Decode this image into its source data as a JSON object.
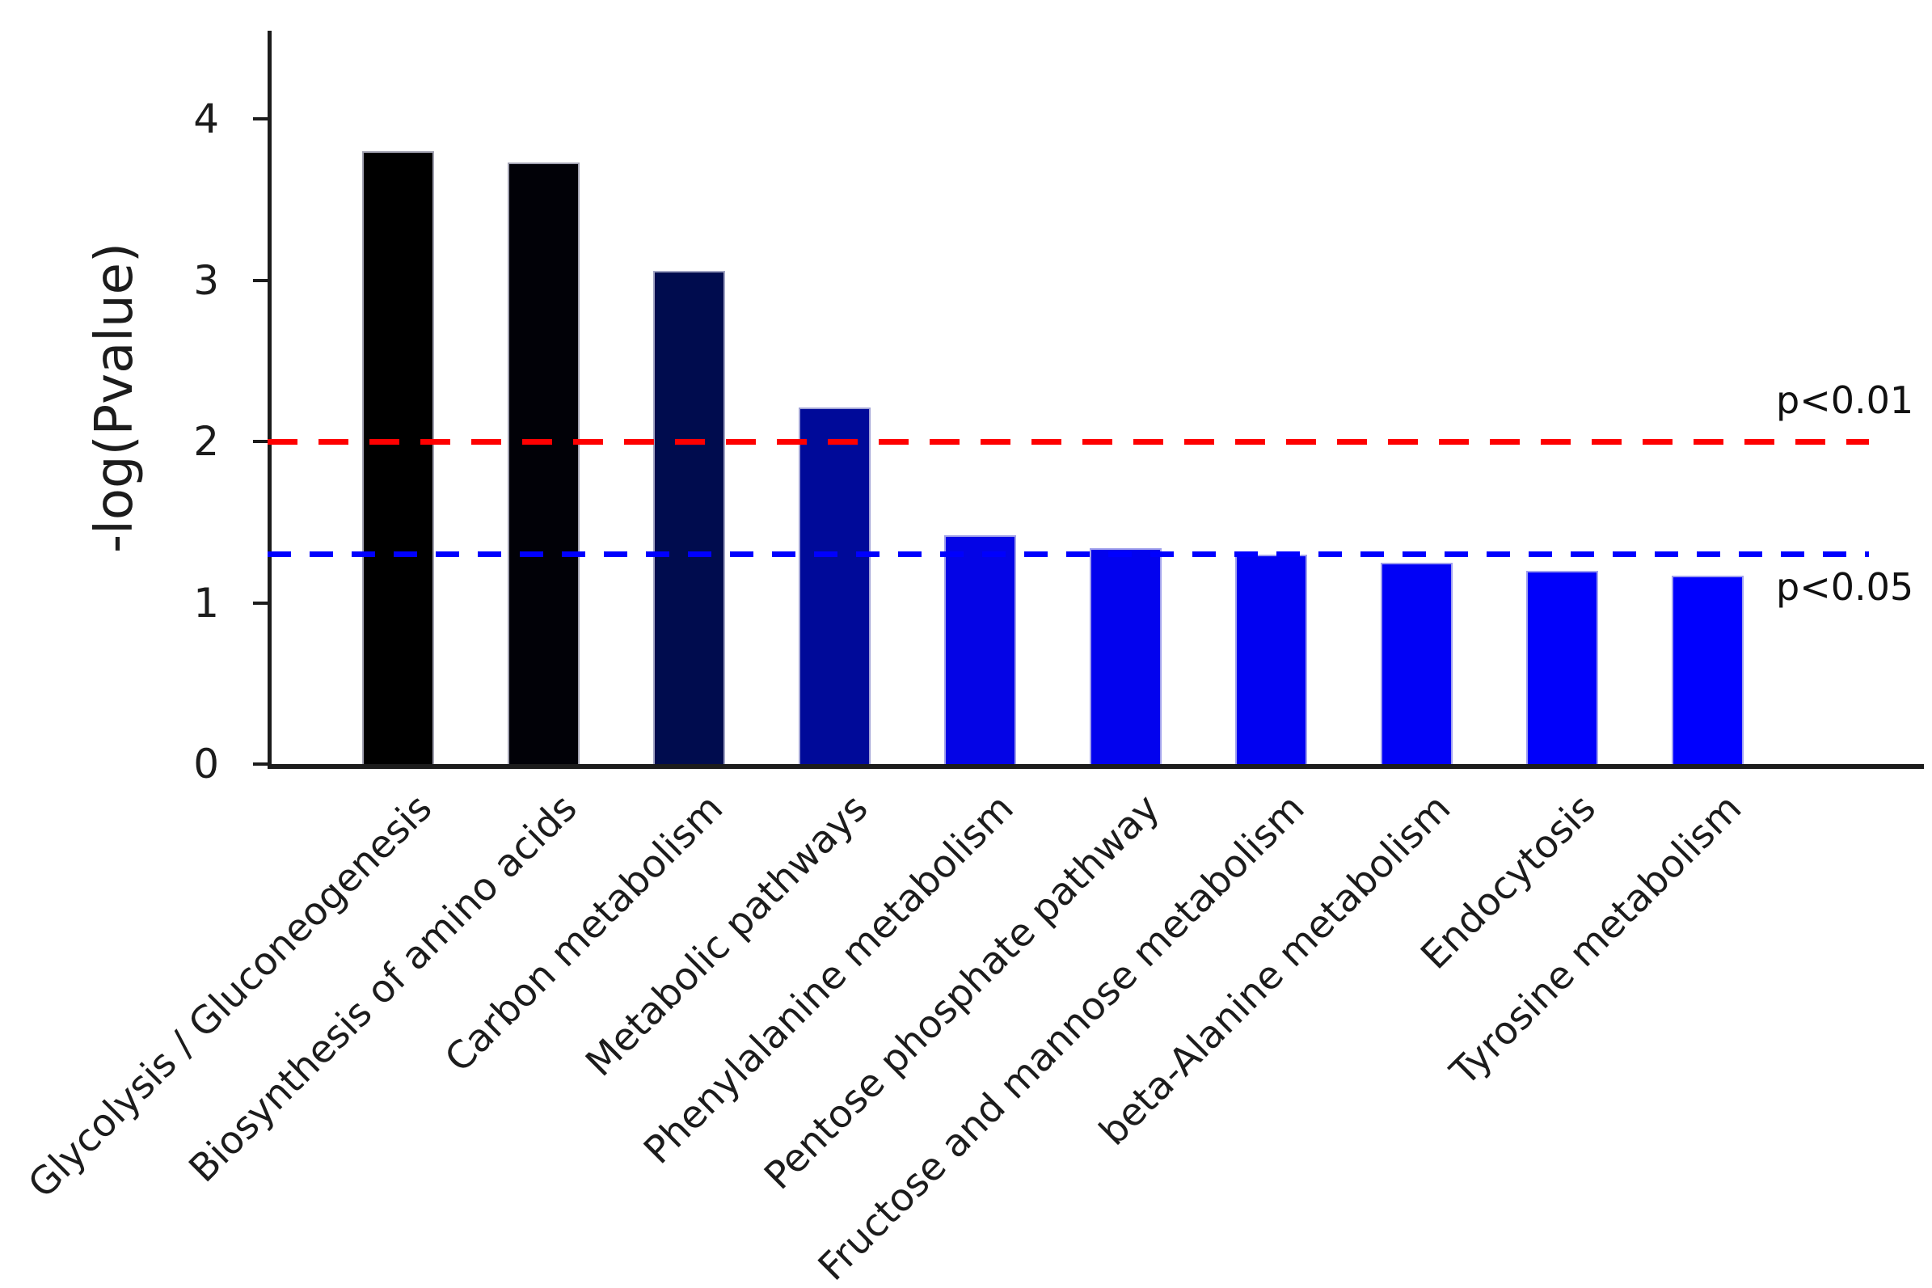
{
  "chart_data": {
    "type": "bar",
    "title": "",
    "xlabel": "",
    "ylabel": "-log(Pvalue)",
    "categories": [
      "Glycolysis / Gluconeogenesis",
      "Biosynthesis of amino acids",
      "Carbon metabolism",
      "Metabolic pathways",
      "Phenylalanine metabolism",
      "Pentose phosphate pathway",
      "Fructose and mannose metabolism",
      "beta-Alanine metabolism",
      "Endocytosis",
      "Tyrosine metabolism"
    ],
    "values": [
      3.8,
      3.73,
      3.06,
      2.21,
      1.42,
      1.34,
      1.3,
      1.25,
      1.2,
      1.17
    ],
    "bar_colors": [
      "#000000",
      "#010107",
      "#000c4e",
      "#000a99",
      "#0404e6",
      "#0202ee",
      "#0101f1",
      "#0101f6",
      "#0000fa",
      "#0000fe"
    ],
    "ylim": [
      0,
      4.55
    ],
    "yticks": [
      "0",
      "1",
      "2",
      "3",
      "4"
    ],
    "grid": false,
    "legend": null,
    "thresholds": [
      {
        "label": "p<0.01",
        "value": 2.0,
        "color": "#fe0000"
      },
      {
        "label": "p<0.05",
        "value": 1.301,
        "color": "#0000fe"
      }
    ]
  }
}
